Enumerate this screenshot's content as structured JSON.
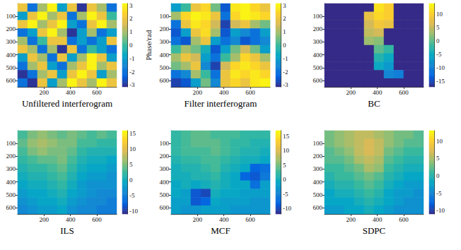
{
  "chart_data": [
    {
      "type": "heatmap",
      "title": "Unfiltered interferogram",
      "x": [
        37.5,
        112.5,
        187.5,
        262.5,
        337.5,
        412.5,
        487.5,
        562.5,
        637.5,
        712.5
      ],
      "y": [
        32.5,
        97.5,
        162.5,
        227.5,
        292.5,
        357.5,
        422.5,
        487.5,
        552.5,
        617.5
      ],
      "values": [
        [
          2,
          -2,
          1,
          3,
          -1,
          2,
          -3,
          2,
          1,
          -2
        ],
        [
          -1,
          2,
          3,
          1,
          2,
          -2,
          1,
          3,
          2,
          0
        ],
        [
          2,
          3,
          1,
          2,
          3,
          -1,
          -2,
          2,
          3,
          1
        ],
        [
          -2,
          -1,
          2,
          3,
          1,
          -3,
          -1,
          1,
          -2,
          -1
        ],
        [
          1,
          -2,
          0,
          2,
          2,
          -2,
          -1,
          -2,
          -1,
          2
        ],
        [
          2,
          1,
          -2,
          1,
          -3,
          2,
          -2,
          0,
          -1,
          -2
        ],
        [
          -1,
          2,
          1,
          -2,
          2,
          -1,
          1,
          3,
          2,
          -1
        ],
        [
          -2,
          1,
          2,
          -1,
          -2,
          1,
          2,
          3,
          1,
          2
        ],
        [
          -3,
          -2,
          1,
          2,
          -1,
          2,
          3,
          2,
          -1,
          1
        ],
        [
          -2,
          -3,
          2,
          -1,
          1,
          3,
          2,
          1,
          3,
          2
        ]
      ],
      "xlim": [
        0,
        750
      ],
      "ylim": [
        0,
        650
      ],
      "xticks": [
        200,
        400,
        600
      ],
      "yticks": [
        100,
        200,
        300,
        400,
        500,
        600
      ],
      "colorbar": {
        "range": [
          -3.14,
          3.14
        ],
        "ticks": [
          -3,
          -2,
          -1,
          0,
          1,
          2,
          3
        ],
        "label": "Phase/rad"
      }
    },
    {
      "type": "heatmap",
      "title": "Filter interferogram",
      "x": [
        37.5,
        112.5,
        187.5,
        262.5,
        337.5,
        412.5,
        487.5,
        562.5,
        637.5,
        712.5
      ],
      "y": [
        32.5,
        97.5,
        162.5,
        227.5,
        292.5,
        357.5,
        422.5,
        487.5,
        552.5,
        617.5
      ],
      "values": [
        [
          -1,
          0,
          2,
          2.5,
          0.5,
          -2.5,
          2.8,
          3,
          2.5,
          2
        ],
        [
          1,
          2.5,
          3,
          2.8,
          2,
          -2,
          2.5,
          3,
          2.8,
          2.5
        ],
        [
          -2,
          2,
          2.8,
          2.5,
          1.5,
          -2.8,
          1.5,
          2,
          1,
          0.5
        ],
        [
          -2.5,
          -1,
          2,
          2.6,
          1,
          -2.5,
          -1,
          -1.5,
          -2,
          -1
        ],
        [
          -2,
          -2.5,
          1,
          2,
          -1,
          -2,
          -1.5,
          -2.5,
          -2,
          -1.5
        ],
        [
          0,
          1,
          0.5,
          -0.5,
          -2.5,
          -1,
          0.5,
          1.5,
          0.5,
          -1
        ],
        [
          1,
          2,
          1.5,
          -1,
          -2,
          0,
          1,
          2.5,
          2,
          1
        ],
        [
          0.5,
          1,
          2,
          -1.5,
          -2.8,
          1.5,
          2.5,
          2.8,
          2.5,
          2
        ],
        [
          -2,
          -1.5,
          1,
          0,
          -2,
          2,
          2.8,
          2.5,
          2.8,
          2.5
        ],
        [
          -2.8,
          -2.5,
          -1,
          0.5,
          -1.5,
          2,
          2.5,
          2,
          2.8,
          3
        ]
      ],
      "xlim": [
        0,
        750
      ],
      "ylim": [
        0,
        650
      ],
      "xticks": [
        200,
        400,
        600
      ],
      "yticks": [
        100,
        200,
        300,
        400,
        500,
        600
      ],
      "colorbar": {
        "range": [
          -3.14,
          3.14
        ],
        "ticks": [
          -3,
          -2,
          -1,
          0,
          1,
          2,
          3
        ]
      }
    },
    {
      "type": "heatmap",
      "title": "BC",
      "x": [
        37.5,
        112.5,
        187.5,
        262.5,
        337.5,
        412.5,
        487.5,
        562.5,
        637.5,
        712.5
      ],
      "y": [
        32.5,
        97.5,
        162.5,
        227.5,
        292.5,
        357.5,
        422.5,
        487.5,
        552.5,
        617.5
      ],
      "values": [
        [
          -17,
          -17,
          -17,
          -17,
          -17,
          12,
          10,
          -17,
          -17,
          -17
        ],
        [
          -17,
          -17,
          -17,
          -17,
          8,
          11,
          10,
          -17,
          -17,
          -17
        ],
        [
          -17,
          -17,
          -17,
          -17,
          6,
          9,
          8,
          -17,
          -17,
          -17
        ],
        [
          -17,
          -17,
          -17,
          -17,
          5,
          6,
          -17,
          -17,
          -17,
          -17
        ],
        [
          -17,
          -17,
          -17,
          -17,
          3,
          2,
          -17,
          -17,
          -17,
          -17
        ],
        [
          -17,
          -17,
          -17,
          -17,
          -17,
          0,
          -2,
          -17,
          -17,
          -17
        ],
        [
          -17,
          -17,
          -17,
          -17,
          -17,
          -3,
          -5,
          -17,
          -17,
          -17
        ],
        [
          -17,
          -17,
          -17,
          -17,
          -17,
          -5,
          -7,
          -17,
          -17,
          -17
        ],
        [
          -17,
          -17,
          -17,
          -17,
          -17,
          -17,
          -9,
          -10,
          -17,
          -17
        ],
        [
          -17,
          -17,
          -17,
          -17,
          -17,
          -17,
          -17,
          -17,
          -17,
          -17
        ]
      ],
      "xlim": [
        0,
        750
      ],
      "ylim": [
        0,
        650
      ],
      "xticks": [
        200,
        400,
        600
      ],
      "yticks": [
        100,
        200,
        300,
        400,
        500,
        600
      ],
      "colorbar": {
        "range": [
          -17,
          14
        ],
        "ticks": [
          -15,
          -10,
          -5,
          0,
          5,
          10
        ]
      }
    },
    {
      "type": "heatmap",
      "title": "ILS",
      "x": [
        37.5,
        112.5,
        187.5,
        262.5,
        337.5,
        412.5,
        487.5,
        562.5,
        637.5,
        712.5
      ],
      "y": [
        32.5,
        97.5,
        162.5,
        227.5,
        292.5,
        357.5,
        422.5,
        487.5,
        552.5,
        617.5
      ],
      "values": [
        [
          3,
          5,
          6,
          5,
          4,
          5,
          4,
          3,
          4,
          3
        ],
        [
          4,
          6,
          7,
          6,
          5,
          5,
          3,
          3,
          2,
          2
        ],
        [
          3,
          5,
          6,
          5,
          5,
          4,
          2,
          1,
          1,
          1
        ],
        [
          2,
          3,
          4,
          4,
          5,
          3,
          1,
          0,
          0,
          -1
        ],
        [
          1,
          2,
          2,
          3,
          4,
          2,
          0,
          -1,
          -1,
          -2
        ],
        [
          0,
          1,
          1,
          2,
          3,
          1,
          -1,
          -2,
          -2,
          -3
        ],
        [
          -1,
          0,
          0,
          1,
          2,
          0,
          -2,
          -3,
          -3,
          -3
        ],
        [
          -2,
          -1,
          -1,
          0,
          1,
          -1,
          -2,
          -3,
          -4,
          -4
        ],
        [
          -3,
          -2,
          -1,
          -1,
          0,
          -2,
          -3,
          -4,
          -4,
          -5
        ],
        [
          -4,
          -3,
          -2,
          -2,
          -1,
          -3,
          -4,
          -4,
          -5,
          -5
        ]
      ],
      "xlim": [
        0,
        750
      ],
      "ylim": [
        0,
        650
      ],
      "xticks": [
        200,
        400,
        600
      ],
      "yticks": [
        100,
        200,
        300,
        400,
        500,
        600
      ],
      "colorbar": {
        "range": [
          -11,
          16
        ],
        "ticks": [
          -10,
          -5,
          0,
          5,
          10,
          15
        ]
      }
    },
    {
      "type": "heatmap",
      "title": "MCF",
      "x": [
        37.5,
        112.5,
        187.5,
        262.5,
        337.5,
        412.5,
        487.5,
        562.5,
        637.5,
        712.5
      ],
      "y": [
        32.5,
        97.5,
        162.5,
        227.5,
        292.5,
        357.5,
        422.5,
        487.5,
        552.5,
        617.5
      ],
      "values": [
        [
          2,
          3,
          4,
          4,
          3,
          3,
          3,
          2,
          2,
          2
        ],
        [
          2,
          3,
          4,
          4,
          4,
          3,
          2,
          2,
          1,
          1
        ],
        [
          2,
          3,
          3,
          3,
          4,
          3,
          2,
          1,
          1,
          0
        ],
        [
          1,
          2,
          2,
          3,
          3,
          2,
          1,
          0,
          0,
          -1
        ],
        [
          0,
          1,
          1,
          2,
          3,
          1,
          0,
          -1,
          -8,
          -7
        ],
        [
          0,
          0,
          1,
          1,
          2,
          0,
          -1,
          -8,
          -9,
          -6
        ],
        [
          -1,
          0,
          -1,
          0,
          1,
          0,
          -1,
          -1,
          -7,
          -2
        ],
        [
          -1,
          -2,
          -9,
          -10,
          0,
          -1,
          -1,
          -2,
          -2,
          -2
        ],
        [
          -2,
          -2,
          -9,
          -8,
          -1,
          -2,
          -2,
          -2,
          -3,
          -3
        ],
        [
          -2,
          -3,
          -3,
          -2,
          -2,
          -2,
          -3,
          -3,
          -3,
          -3
        ]
      ],
      "xlim": [
        0,
        750
      ],
      "ylim": [
        0,
        650
      ],
      "xticks": [
        200,
        400,
        600
      ],
      "yticks": [
        100,
        200,
        300,
        400,
        500,
        600
      ],
      "colorbar": {
        "range": [
          -12,
          17
        ],
        "ticks": [
          -10,
          -5,
          0,
          5,
          10,
          15
        ]
      }
    },
    {
      "type": "heatmap",
      "title": "SDPC",
      "x": [
        37.5,
        112.5,
        187.5,
        262.5,
        337.5,
        412.5,
        487.5,
        562.5,
        637.5,
        712.5
      ],
      "y": [
        32.5,
        97.5,
        162.5,
        227.5,
        292.5,
        357.5,
        422.5,
        487.5,
        552.5,
        617.5
      ],
      "values": [
        [
          3,
          4,
          5,
          6,
          6,
          5,
          4,
          3,
          3,
          2
        ],
        [
          3,
          4,
          5,
          6,
          7,
          6,
          4,
          3,
          2,
          2
        ],
        [
          2,
          3,
          4,
          6,
          7,
          6,
          3,
          2,
          1,
          1
        ],
        [
          2,
          2,
          3,
          5,
          6,
          5,
          2,
          1,
          0,
          0
        ],
        [
          1,
          1,
          2,
          3,
          5,
          4,
          1,
          0,
          -1,
          -1
        ],
        [
          0,
          1,
          1,
          2,
          3,
          2,
          0,
          -1,
          -2,
          -2
        ],
        [
          -1,
          0,
          0,
          1,
          2,
          1,
          -1,
          -2,
          -3,
          -3
        ],
        [
          -2,
          -1,
          -1,
          0,
          1,
          0,
          -2,
          -3,
          -3,
          -4
        ],
        [
          -2,
          -2,
          -2,
          -1,
          0,
          -1,
          -2,
          -3,
          -4,
          -4
        ],
        [
          -3,
          -3,
          -2,
          -2,
          -1,
          -2,
          -3,
          -4,
          -4,
          -4
        ]
      ],
      "xlim": [
        0,
        750
      ],
      "ylim": [
        0,
        650
      ],
      "xticks": [
        200,
        400,
        600
      ],
      "yticks": [
        100,
        200,
        300,
        400,
        500,
        600
      ],
      "colorbar": {
        "range": [
          -11,
          13
        ],
        "ticks": [
          -10,
          -5,
          0,
          5,
          10
        ]
      }
    }
  ]
}
